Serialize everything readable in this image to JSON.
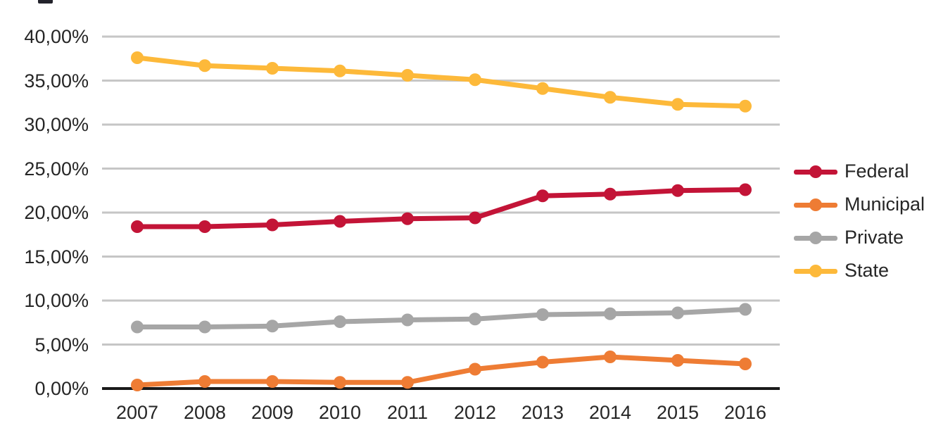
{
  "chart_data": {
    "type": "line",
    "title": "",
    "xlabel": "",
    "ylabel": "",
    "x_categories": [
      "2007",
      "2008",
      "2009",
      "2010",
      "2011",
      "2012",
      "2013",
      "2014",
      "2015",
      "2016"
    ],
    "series": [
      {
        "name": "Federal",
        "color": "#C31437",
        "values": [
          18.4,
          18.4,
          18.6,
          19.0,
          19.3,
          19.4,
          21.9,
          22.1,
          22.5,
          22.6
        ]
      },
      {
        "name": "Municipal",
        "color": "#EE7C34",
        "values": [
          0.4,
          0.8,
          0.8,
          0.7,
          0.7,
          2.2,
          3.0,
          3.6,
          3.2,
          2.8
        ]
      },
      {
        "name": "Private",
        "color": "#A6A6A6",
        "values": [
          7.0,
          7.0,
          7.1,
          7.6,
          7.8,
          7.9,
          8.4,
          8.5,
          8.6,
          9.0
        ]
      },
      {
        "name": "State",
        "color": "#FDB93A",
        "values": [
          37.6,
          36.7,
          36.4,
          36.1,
          35.6,
          35.1,
          34.1,
          33.1,
          32.3,
          32.1
        ]
      }
    ],
    "ylim": [
      0,
      40
    ],
    "ytick_step": 5,
    "ytick_labels": [
      "0,00%",
      "5,00%",
      "10,00%",
      "15,00%",
      "20,00%",
      "25,00%",
      "30,00%",
      "35,00%",
      "40,00%"
    ],
    "grid": true,
    "legend_position": "right"
  },
  "colors": {
    "grid": "#C6C6C6",
    "axis": "#1A1A1A",
    "text": "#262626",
    "background": "#FFFFFF"
  }
}
